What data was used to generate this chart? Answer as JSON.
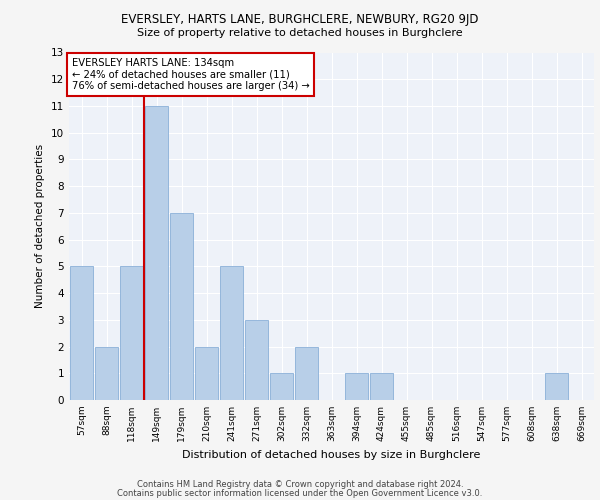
{
  "title1": "EVERSLEY, HARTS LANE, BURGHCLERE, NEWBURY, RG20 9JD",
  "title2": "Size of property relative to detached houses in Burghclere",
  "xlabel": "Distribution of detached houses by size in Burghclere",
  "ylabel": "Number of detached properties",
  "footer1": "Contains HM Land Registry data © Crown copyright and database right 2024.",
  "footer2": "Contains public sector information licensed under the Open Government Licence v3.0.",
  "annotation_line1": "EVERSLEY HARTS LANE: 134sqm",
  "annotation_line2": "← 24% of detached houses are smaller (11)",
  "annotation_line3": "76% of semi-detached houses are larger (34) →",
  "categories": [
    "57sqm",
    "88sqm",
    "118sqm",
    "149sqm",
    "179sqm",
    "210sqm",
    "241sqm",
    "271sqm",
    "302sqm",
    "332sqm",
    "363sqm",
    "394sqm",
    "424sqm",
    "455sqm",
    "485sqm",
    "516sqm",
    "547sqm",
    "577sqm",
    "608sqm",
    "638sqm",
    "669sqm"
  ],
  "values": [
    5,
    2,
    5,
    11,
    7,
    2,
    5,
    3,
    1,
    2,
    0,
    1,
    1,
    0,
    0,
    0,
    0,
    0,
    0,
    1,
    0
  ],
  "bar_color": "#b8cfe8",
  "bar_edge_color": "#8ab0d8",
  "red_line_x": 2.5,
  "ylim": [
    0,
    13
  ],
  "yticks": [
    0,
    1,
    2,
    3,
    4,
    5,
    6,
    7,
    8,
    9,
    10,
    11,
    12,
    13
  ],
  "background_color": "#eef2f9",
  "grid_color": "#ffffff",
  "annotation_box_color": "#ffffff",
  "annotation_box_edge": "#cc0000",
  "red_line_color": "#cc0000",
  "fig_bg": "#f5f5f5"
}
